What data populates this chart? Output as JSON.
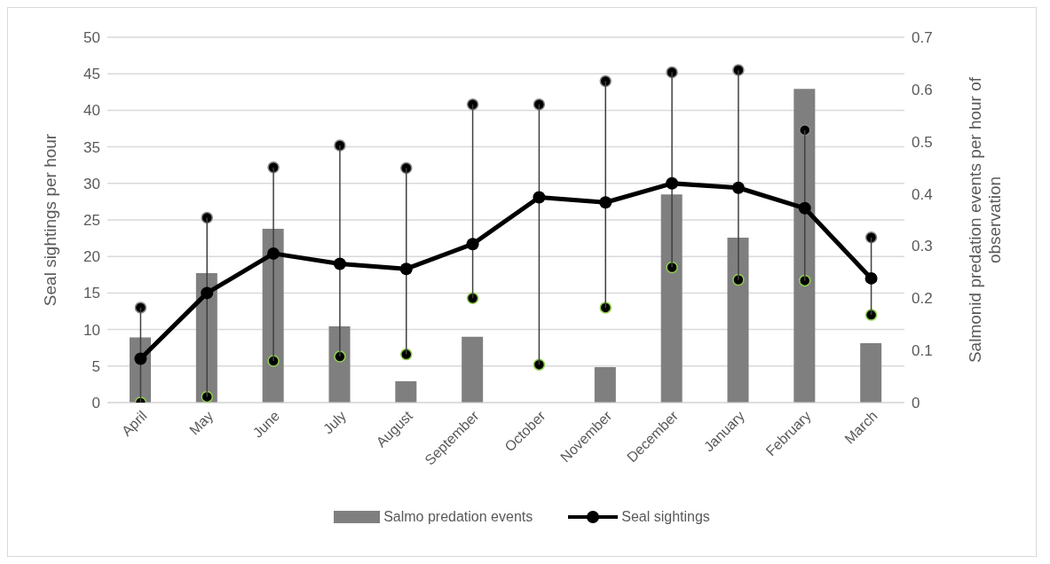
{
  "chart_data": {
    "type": "bar",
    "categories": [
      "April",
      "May",
      "June",
      "July",
      "August",
      "September",
      "October",
      "November",
      "December",
      "January",
      "February",
      "March"
    ],
    "ylabel": "Seal sightings per hour",
    "y2label": "Salmonid predation events per hour of observation",
    "ylim": [
      0,
      50
    ],
    "yticks": [
      0,
      5,
      10,
      15,
      20,
      25,
      30,
      35,
      40,
      45,
      50
    ],
    "y2lim": [
      0,
      0.7
    ],
    "y2ticks": [
      0,
      0.1,
      0.2,
      0.3,
      0.4,
      0.5,
      0.6,
      0.7
    ],
    "grid": "y",
    "legend": "bottom",
    "marker": "circle",
    "series": [
      {
        "name": "Salmo predation events",
        "axis": "y2",
        "color": "#7f7f7f",
        "values": [
          0.125,
          0.248,
          0.333,
          0.146,
          0.041,
          0.126,
          0,
          0.068,
          0.399,
          0.316,
          0.601,
          0.114
        ]
      },
      {
        "name": "Seal sightings",
        "type": "line",
        "axis": "y",
        "color": "#000000",
        "values": [
          6,
          15,
          20.4,
          19,
          18.3,
          21.7,
          28.1,
          27.4,
          30,
          29.4,
          26.6,
          17
        ],
        "errors": [
          [
            0,
            13
          ],
          [
            0.8,
            25.3
          ],
          [
            5.7,
            32.2
          ],
          [
            6.3,
            35.2
          ],
          [
            6.6,
            32.1
          ],
          [
            14.3,
            40.8
          ],
          [
            5.2,
            40.8
          ],
          [
            13,
            44
          ],
          [
            18.5,
            45.2
          ],
          [
            16.8,
            45.5
          ],
          [
            16.7,
            37.3
          ],
          [
            12,
            22.6
          ]
        ]
      }
    ]
  }
}
